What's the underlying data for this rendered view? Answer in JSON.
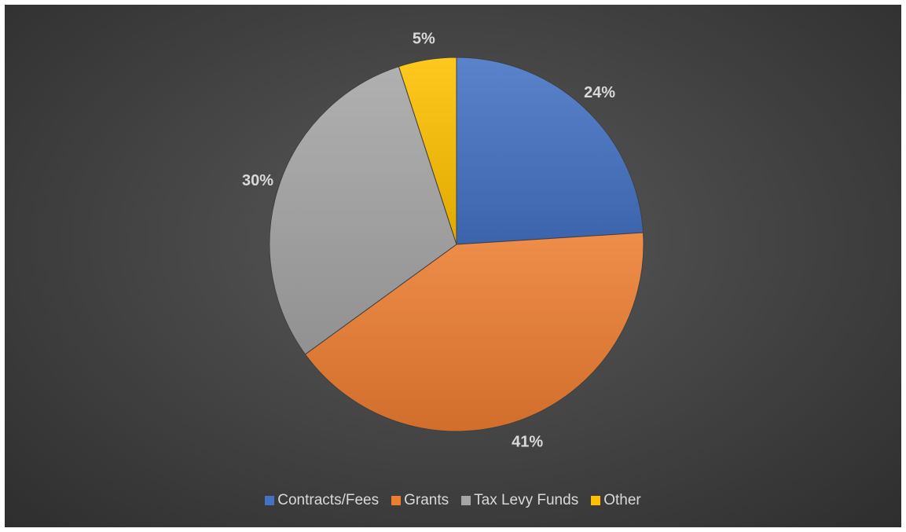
{
  "chart_data": {
    "type": "pie",
    "title": "",
    "start_angle_deg": 0,
    "direction": "clockwise",
    "legend_position": "bottom",
    "series": [
      {
        "name": "Contracts/Fees",
        "value": 24,
        "label": "24%",
        "color": "#4472C4"
      },
      {
        "name": "Grants",
        "value": 41,
        "label": "41%",
        "color": "#ED7D31"
      },
      {
        "name": "Tax Levy Funds",
        "value": 30,
        "label": "30%",
        "color": "#A5A5A5"
      },
      {
        "name": "Other",
        "value": 5,
        "label": "5%",
        "color": "#FFC000"
      }
    ]
  }
}
